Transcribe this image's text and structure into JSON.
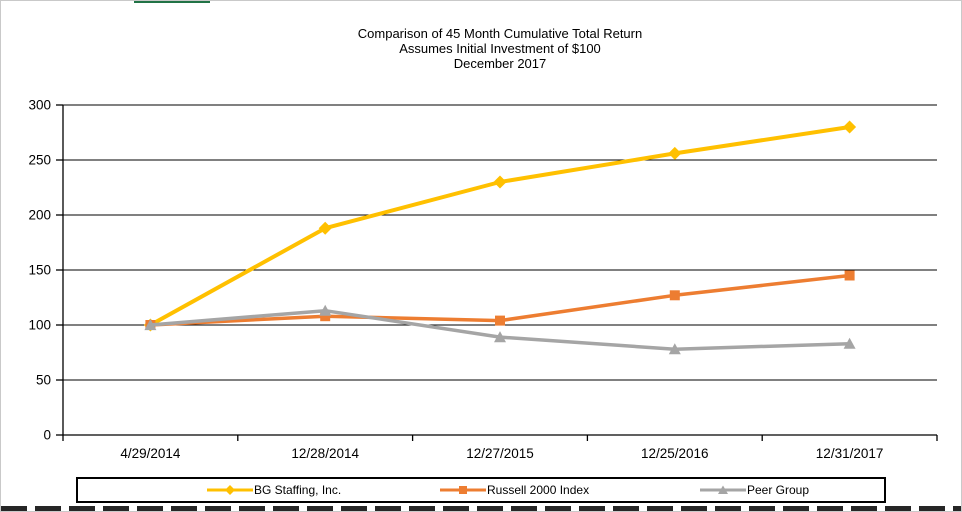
{
  "window": {
    "background": "#ffffff",
    "border_color": "#c9c9c9",
    "green_sliver_color": "#217346",
    "bottom_dash_color": "#262626"
  },
  "chart_data": {
    "type": "line",
    "title": "Comparison of 45 Month Cumulative Total Return",
    "subtitle": "Assumes Initial Investment of $100",
    "date_line": "December 2017",
    "categories": [
      "4/29/2014",
      "12/28/2014",
      "12/27/2015",
      "12/25/2016",
      "12/31/2017"
    ],
    "series": [
      {
        "name": "BG Staffing, Inc.",
        "color": "#FFC000",
        "marker": "diamond",
        "line_width": 4,
        "values": [
          100,
          188,
          230,
          256,
          280
        ]
      },
      {
        "name": "Russell 2000 Index",
        "color": "#ED7D31",
        "marker": "square",
        "line_width": 3.5,
        "values": [
          100,
          108,
          104,
          127,
          145
        ]
      },
      {
        "name": "Peer Group",
        "color": "#A5A5A5",
        "marker": "triangle",
        "line_width": 3.5,
        "values": [
          100,
          113,
          89,
          78,
          83
        ]
      }
    ],
    "ylim": [
      0,
      300
    ],
    "yticks": [
      0,
      50,
      100,
      150,
      200,
      250,
      300
    ],
    "xlabel": "",
    "ylabel": "",
    "grid": "horizontal",
    "gridline_color": "#000000",
    "axis_color": "#000000",
    "legend_position": "bottom"
  }
}
